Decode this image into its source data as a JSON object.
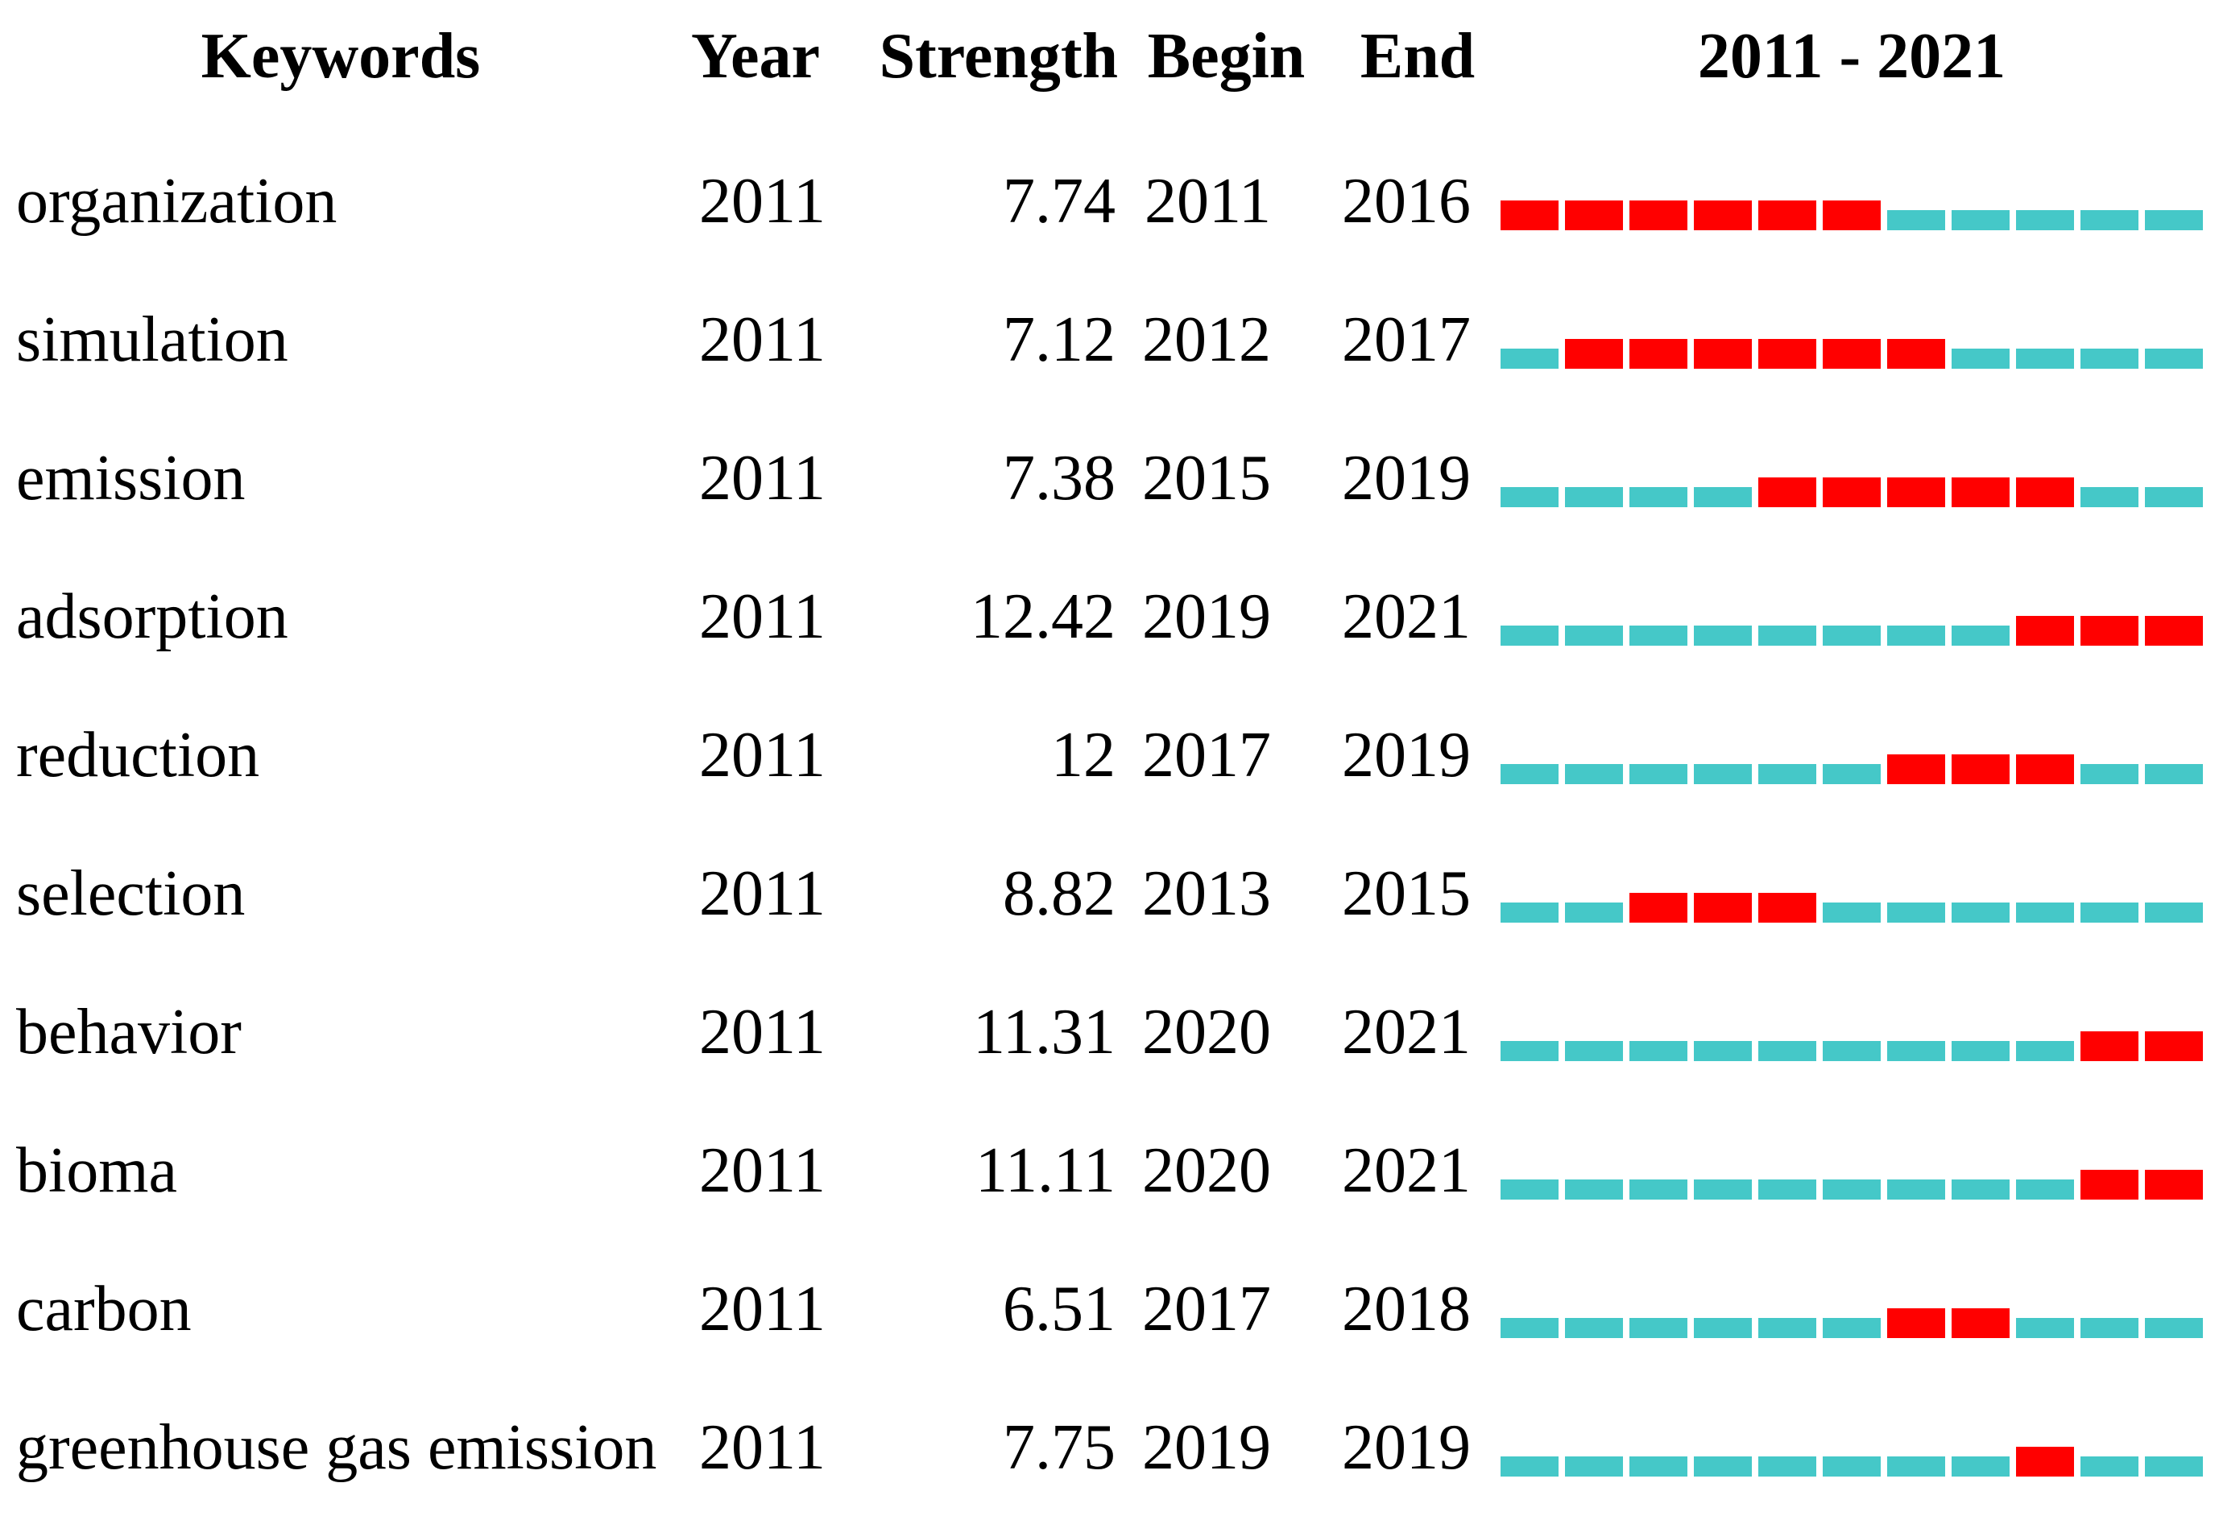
{
  "columns": {
    "keyword": "Keywords",
    "year": "Year",
    "strength": "Strength",
    "begin": "Begin",
    "end": "End",
    "range": "2011 - 2021"
  },
  "timeline": {
    "start_year": 2011,
    "end_year": 2021
  },
  "colors": {
    "burst": "#FF0000",
    "base": "#45C8C8"
  },
  "rows": [
    {
      "keyword": "organization",
      "year": "2011",
      "strength": "7.74",
      "begin": 2011,
      "end": 2016
    },
    {
      "keyword": "simulation",
      "year": "2011",
      "strength": "7.12",
      "begin": 2012,
      "end": 2017
    },
    {
      "keyword": "emission",
      "year": "2011",
      "strength": "7.38",
      "begin": 2015,
      "end": 2019
    },
    {
      "keyword": "adsorption",
      "year": "2011",
      "strength": "12.42",
      "begin": 2019,
      "end": 2021
    },
    {
      "keyword": "reduction",
      "year": "2011",
      "strength": "12",
      "begin": 2017,
      "end": 2019
    },
    {
      "keyword": "selection",
      "year": "2011",
      "strength": "8.82",
      "begin": 2013,
      "end": 2015
    },
    {
      "keyword": "behavior",
      "year": "2011",
      "strength": "11.31",
      "begin": 2020,
      "end": 2021
    },
    {
      "keyword": "bioma",
      "year": "2011",
      "strength": "11.11",
      "begin": 2020,
      "end": 2021
    },
    {
      "keyword": "carbon",
      "year": "2011",
      "strength": "6.51",
      "begin": 2017,
      "end": 2018
    },
    {
      "keyword": "greenhouse gas emission",
      "year": "2011",
      "strength": "7.75",
      "begin": 2019,
      "end": 2019
    }
  ],
  "chart_data": {
    "type": "table",
    "subtype": "citation-burst-timeline",
    "title": "Keywords with citation bursts, 2011 - 2021",
    "columns": [
      "Keywords",
      "Year",
      "Strength",
      "Begin",
      "End",
      "2011 - 2021"
    ],
    "timeline_years": [
      2011,
      2012,
      2013,
      2014,
      2015,
      2016,
      2017,
      2018,
      2019,
      2020,
      2021
    ],
    "rows": [
      {
        "keyword": "organization",
        "year": 2011,
        "strength": 7.74,
        "begin": 2011,
        "end": 2016
      },
      {
        "keyword": "simulation",
        "year": 2011,
        "strength": 7.12,
        "begin": 2012,
        "end": 2017
      },
      {
        "keyword": "emission",
        "year": 2011,
        "strength": 7.38,
        "begin": 2015,
        "end": 2019
      },
      {
        "keyword": "adsorption",
        "year": 2011,
        "strength": 12.42,
        "begin": 2019,
        "end": 2021
      },
      {
        "keyword": "reduction",
        "year": 2011,
        "strength": 12,
        "begin": 2017,
        "end": 2019
      },
      {
        "keyword": "selection",
        "year": 2011,
        "strength": 8.82,
        "begin": 2013,
        "end": 2015
      },
      {
        "keyword": "behavior",
        "year": 2011,
        "strength": 11.31,
        "begin": 2020,
        "end": 2021
      },
      {
        "keyword": "bioma",
        "year": 2011,
        "strength": 11.11,
        "begin": 2020,
        "end": 2021
      },
      {
        "keyword": "carbon",
        "year": 2011,
        "strength": 6.51,
        "begin": 2017,
        "end": 2018
      },
      {
        "keyword": "greenhouse gas emission",
        "year": 2011,
        "strength": 7.75,
        "begin": 2019,
        "end": 2019
      }
    ],
    "encoding": {
      "red_segment": "burst period (years from Begin to End inclusive)",
      "cyan_segment": "non-burst year within 2011-2021"
    },
    "legend_position": "none",
    "grid": false
  }
}
